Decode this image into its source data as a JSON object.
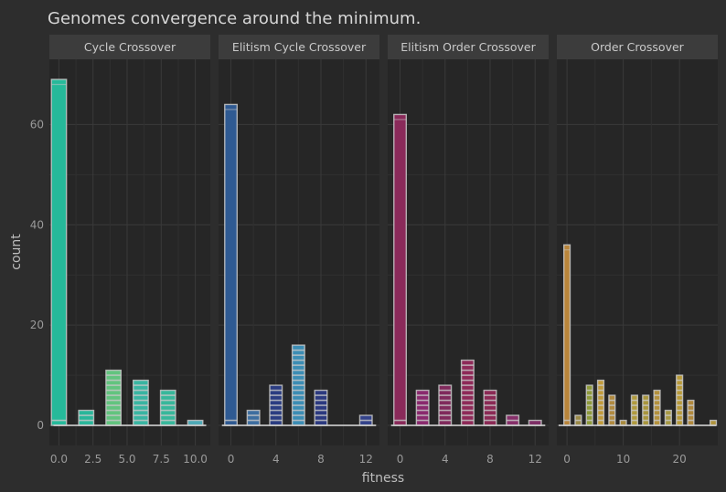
{
  "chart_data": {
    "type": "bar",
    "title": "Genomes convergence around the minimum.",
    "xlabel": "fitness",
    "ylabel": "count",
    "ylim": [
      -4,
      73
    ],
    "yticks": [
      0,
      20,
      40,
      60
    ],
    "facets": [
      {
        "name": "Cycle Crossover",
        "xlim": [
          -0.7,
          11.1
        ],
        "xticks": [
          "0.0",
          "2.5",
          "5.0",
          "7.5",
          "10.0"
        ],
        "xtick_values": [
          0,
          2.5,
          5,
          7.5,
          10
        ],
        "binwidth": 1.1,
        "bars": [
          {
            "x": 0,
            "count": 69
          },
          {
            "x": 2,
            "count": 3
          },
          {
            "x": 4,
            "count": 11
          },
          {
            "x": 6,
            "count": 9
          },
          {
            "x": 8,
            "count": 7
          },
          {
            "x": 10,
            "count": 1
          }
        ],
        "colors": [
          "#26b99a",
          "#2ab69a",
          "#62c47f",
          "#39b5a2",
          "#38b79b",
          "#4ea9b6"
        ]
      },
      {
        "name": "Elitism Cycle Crossover",
        "xlim": [
          -1.1,
          13.2
        ],
        "xticks": [
          "0",
          "4",
          "8",
          "12"
        ],
        "xtick_values": [
          0,
          4,
          8,
          12
        ],
        "binwidth": 1.1,
        "bars": [
          {
            "x": 0,
            "count": 64
          },
          {
            "x": 2,
            "count": 3
          },
          {
            "x": 4,
            "count": 8
          },
          {
            "x": 6,
            "count": 16
          },
          {
            "x": 8,
            "count": 7
          },
          {
            "x": 12,
            "count": 2
          }
        ],
        "colors": [
          "#2f5a92",
          "#3e6ea0",
          "#2b3d82",
          "#3c8db4",
          "#2c3a80",
          "#34438a"
        ]
      },
      {
        "name": "Elitism Order Crossover",
        "xlim": [
          -1.1,
          13.2
        ],
        "xticks": [
          "0",
          "4",
          "8",
          "12"
        ],
        "xtick_values": [
          0,
          4,
          8,
          12
        ],
        "binwidth": 1.1,
        "bars": [
          {
            "x": 0,
            "count": 62
          },
          {
            "x": 2,
            "count": 7
          },
          {
            "x": 4,
            "count": 8
          },
          {
            "x": 6,
            "count": 13
          },
          {
            "x": 8,
            "count": 7
          },
          {
            "x": 10,
            "count": 2
          },
          {
            "x": 12,
            "count": 1
          }
        ],
        "colors": [
          "#8a2a5a",
          "#8a2a6e",
          "#802a5c",
          "#8e2a58",
          "#8b2a55",
          "#86306a",
          "#7e2f66"
        ]
      },
      {
        "name": "Order Crossover",
        "xlim": [
          -1.8,
          26.8
        ],
        "xticks": [
          "0",
          "10",
          "20"
        ],
        "xtick_values": [
          0,
          10,
          20
        ],
        "binwidth": 1.1,
        "bars": [
          {
            "x": 0,
            "count": 36
          },
          {
            "x": 2,
            "count": 2
          },
          {
            "x": 4,
            "count": 8
          },
          {
            "x": 6,
            "count": 9
          },
          {
            "x": 8,
            "count": 6
          },
          {
            "x": 10,
            "count": 1
          },
          {
            "x": 12,
            "count": 6
          },
          {
            "x": 14,
            "count": 6
          },
          {
            "x": 16,
            "count": 7
          },
          {
            "x": 18,
            "count": 3
          },
          {
            "x": 20,
            "count": 10
          },
          {
            "x": 22,
            "count": 5
          },
          {
            "x": 26,
            "count": 1
          }
        ],
        "colors": [
          "#b9853a",
          "#9a8a48",
          "#8e9a3a",
          "#c09a3a",
          "#b08a40",
          "#a88a3e",
          "#b09a3e",
          "#a8953c",
          "#b4923c",
          "#a89a44",
          "#b89a38",
          "#b0883c",
          "#b0943c"
        ]
      }
    ],
    "colors": {
      "background": "#2d2d2d",
      "panel": "#262626",
      "strip": "#3c3c3c",
      "grid_major": "#3a3a3a",
      "grid_minor": "#303030",
      "bar_outline": "#c8c8c8"
    }
  }
}
